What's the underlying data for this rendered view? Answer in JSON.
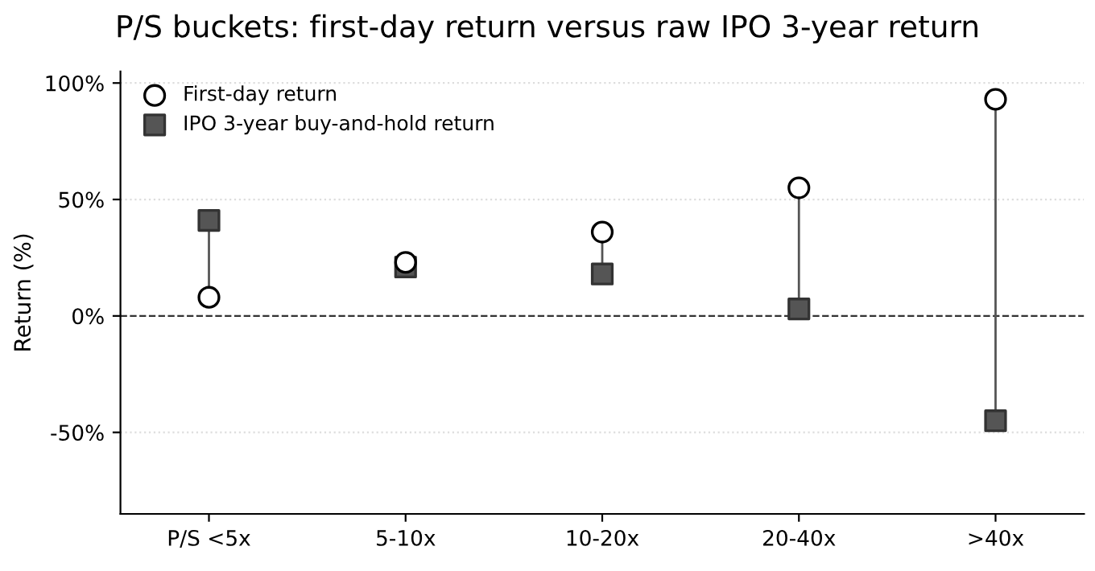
{
  "chart_data": {
    "type": "scatter",
    "title": "P/S buckets: first-day return versus raw IPO 3-year return",
    "ylabel": "Return (%)",
    "categories": [
      "P/S <5x",
      "5-10x",
      "10-20x",
      "20-40x",
      ">40x"
    ],
    "series": [
      {
        "name": "First-day return",
        "color": "#ffffff",
        "marker": "circle",
        "values": [
          8,
          23,
          36,
          55,
          93
        ]
      },
      {
        "name": "IPO 3-year buy-and-hold return",
        "color": "#555555",
        "marker": "square",
        "values": [
          41,
          21,
          18,
          3,
          -45
        ]
      }
    ],
    "ylim": [
      -85,
      105
    ],
    "yticks": [
      {
        "value": -50,
        "label": "-50%"
      },
      {
        "value": 0,
        "label": "0%"
      },
      {
        "value": 50,
        "label": "50%"
      },
      {
        "value": 100,
        "label": "100%"
      }
    ],
    "ref_lines": [
      {
        "axis": "y",
        "value": 0,
        "color": "#333333",
        "line_style": "dashed"
      }
    ],
    "grid": "y",
    "legend": "top left"
  }
}
